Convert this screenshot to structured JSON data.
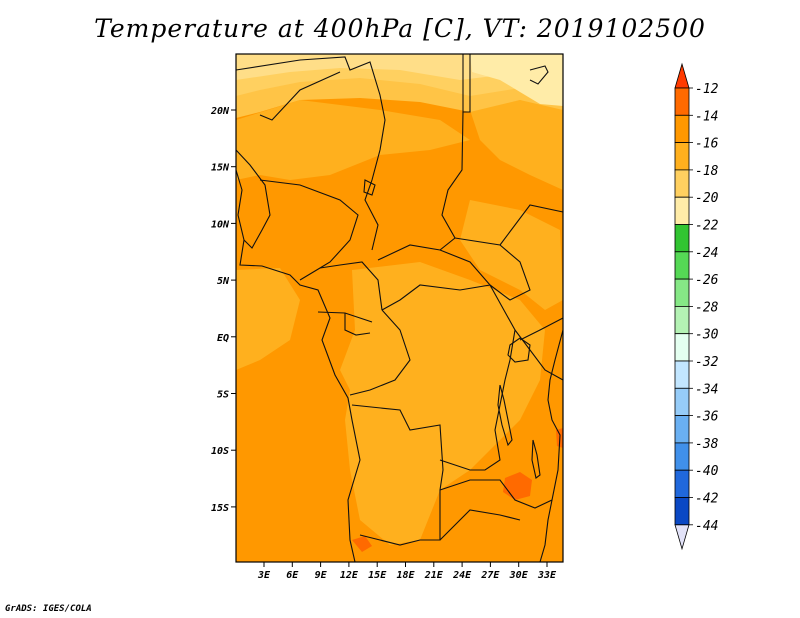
{
  "title": "Temperature at 400hPa [C], VT: 2019102500",
  "credit": "GrADS: IGES/COLA",
  "map": {
    "lat_labels": [
      "20N",
      "15N",
      "10N",
      "5N",
      "EQ",
      "5S",
      "10S",
      "15S"
    ],
    "lon_labels": [
      "3E",
      "6E",
      "9E",
      "12E",
      "15E",
      "18E",
      "21E",
      "24E",
      "27E",
      "30E",
      "33E"
    ],
    "lon_range_deg": [
      0,
      35
    ],
    "lat_range_deg": [
      -20,
      25
    ]
  },
  "legend": {
    "levels": [
      "-12",
      "-14",
      "-16",
      "-18",
      "-20",
      "-22",
      "-24",
      "-26",
      "-28",
      "-30",
      "-32",
      "-34",
      "-36",
      "-38",
      "-40",
      "-42",
      "-44"
    ],
    "colors": [
      "#ff3a00",
      "#ff6a00",
      "#ff9800",
      "#ffb01e",
      "#ffd060",
      "#ffeca8",
      "#31c431",
      "#55d855",
      "#86e886",
      "#b4f2b4",
      "#e4fff0",
      "#c2e6ff",
      "#96ccf8",
      "#6ab0f2",
      "#4090ea",
      "#2068dc",
      "#0a48c4",
      "#08288c"
    ],
    "top_arrow_color": "#ff3a00",
    "bottom_arrow_color": "#e2e2f8"
  },
  "palette": {
    "t_m14": "#ff9800",
    "t_m15": "#ffa514",
    "t_m16": "#ffb01e",
    "t_m17": "#ffc446",
    "t_m18": "#ffd060",
    "t_m19": "#ffde88",
    "t_m20": "#ffeca8",
    "t_m13": "#ff6a00"
  }
}
